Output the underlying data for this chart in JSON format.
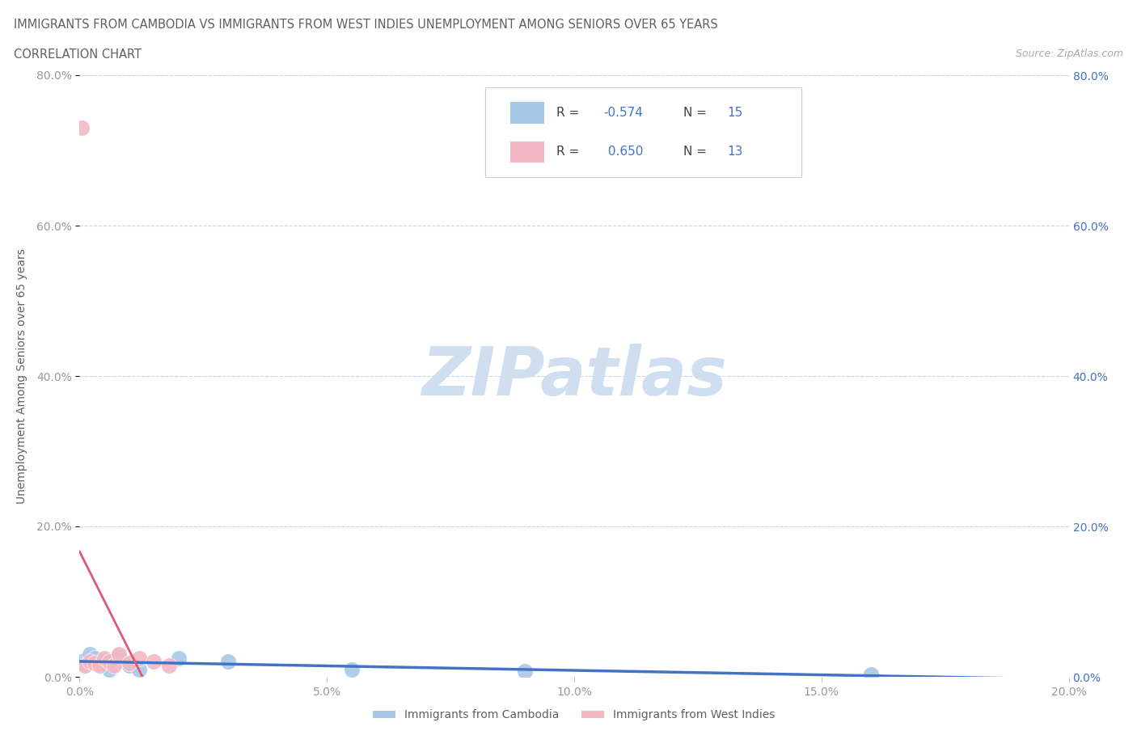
{
  "title_line1": "IMMIGRANTS FROM CAMBODIA VS IMMIGRANTS FROM WEST INDIES UNEMPLOYMENT AMONG SENIORS OVER 65 YEARS",
  "title_line2": "CORRELATION CHART",
  "source": "Source: ZipAtlas.com",
  "ylabel": "Unemployment Among Seniors over 65 years",
  "xlim": [
    0.0,
    0.2
  ],
  "ylim": [
    0.0,
    0.8
  ],
  "xticks": [
    0.0,
    0.05,
    0.1,
    0.15,
    0.2
  ],
  "yticks": [
    0.0,
    0.2,
    0.4,
    0.6,
    0.8
  ],
  "xtick_labels": [
    "0.0%",
    "5.0%",
    "10.0%",
    "15.0%",
    "20.0%"
  ],
  "ytick_labels": [
    "0.0%",
    "20.0%",
    "40.0%",
    "60.0%",
    "80.0%"
  ],
  "cambodia_x": [
    0.0005,
    0.001,
    0.002,
    0.003,
    0.004,
    0.005,
    0.006,
    0.008,
    0.01,
    0.012,
    0.02,
    0.03,
    0.055,
    0.09,
    0.16
  ],
  "cambodia_y": [
    0.02,
    0.015,
    0.03,
    0.025,
    0.018,
    0.022,
    0.01,
    0.028,
    0.015,
    0.01,
    0.025,
    0.02,
    0.01,
    0.008,
    0.003
  ],
  "westindies_x": [
    0.0005,
    0.001,
    0.002,
    0.003,
    0.004,
    0.005,
    0.006,
    0.007,
    0.008,
    0.01,
    0.012,
    0.015,
    0.018
  ],
  "westindies_y": [
    0.73,
    0.015,
    0.02,
    0.018,
    0.015,
    0.025,
    0.02,
    0.015,
    0.03,
    0.018,
    0.025,
    0.02,
    0.015
  ],
  "cambodia_R": -0.574,
  "cambodia_N": 15,
  "westindies_R": 0.65,
  "westindies_N": 13,
  "cambodia_color": "#a8c8e8",
  "cambodia_line_color": "#4472c4",
  "westindies_color": "#f4b8c4",
  "westindies_line_color": "#e05878",
  "background_color": "#ffffff",
  "grid_color": "#c8d4e8",
  "watermark_color": "#d0dff0",
  "title_color": "#606060",
  "axis_label_color": "#606060",
  "left_tick_color": "#999999",
  "right_tick_color": "#4472c4",
  "legend_text_color": "#4472c4"
}
